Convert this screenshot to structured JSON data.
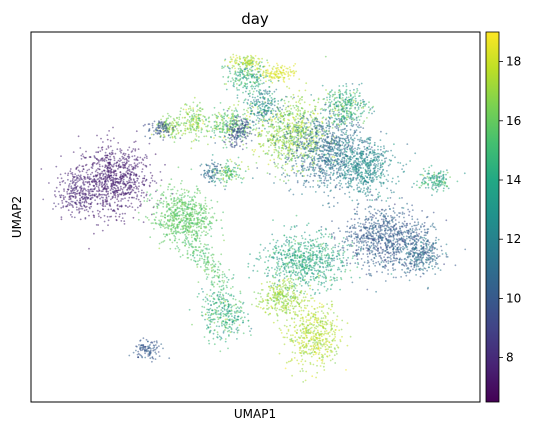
{
  "chart_data": {
    "type": "scatter",
    "title": "day",
    "xlabel": "UMAP1",
    "ylabel": "UMAP2",
    "colorbar": {
      "label": "",
      "colormap": "viridis",
      "range": [
        6.5,
        19.0
      ],
      "ticks": [
        8,
        10,
        12,
        14,
        16,
        18
      ]
    },
    "axis_ticks": false,
    "grid": false,
    "legend": "none",
    "clusters": [
      {
        "x": 0.18,
        "y": 0.6,
        "rx": 0.085,
        "ry": 0.095,
        "rot": -8,
        "value": 7.6,
        "spread": 0.4,
        "n": 900
      },
      {
        "x": 0.1,
        "y": 0.56,
        "rx": 0.04,
        "ry": 0.05,
        "rot": 0,
        "value": 7.8,
        "spread": 0.4,
        "n": 200
      },
      {
        "x": 0.34,
        "y": 0.5,
        "rx": 0.065,
        "ry": 0.075,
        "rot": 10,
        "value": 15.8,
        "spread": 0.6,
        "n": 650
      },
      {
        "x": 0.39,
        "y": 0.38,
        "rx": 0.03,
        "ry": 0.09,
        "rot": 30,
        "value": 15.5,
        "spread": 0.8,
        "n": 180
      },
      {
        "x": 0.26,
        "y": 0.14,
        "rx": 0.03,
        "ry": 0.025,
        "rot": 0,
        "value": 10.0,
        "spread": 0.6,
        "n": 110
      },
      {
        "x": 0.58,
        "y": 0.73,
        "rx": 0.08,
        "ry": 0.095,
        "rot": 0,
        "value": 16.8,
        "spread": 1.2,
        "n": 700
      },
      {
        "x": 0.66,
        "y": 0.68,
        "rx": 0.1,
        "ry": 0.1,
        "rot": 0,
        "value": 11.0,
        "spread": 1.2,
        "n": 900
      },
      {
        "x": 0.74,
        "y": 0.63,
        "rx": 0.07,
        "ry": 0.07,
        "rot": 0,
        "value": 12.5,
        "spread": 1.0,
        "n": 500
      },
      {
        "x": 0.79,
        "y": 0.44,
        "rx": 0.1,
        "ry": 0.085,
        "rot": -10,
        "value": 10.2,
        "spread": 1.0,
        "n": 900
      },
      {
        "x": 0.87,
        "y": 0.4,
        "rx": 0.045,
        "ry": 0.06,
        "rot": 0,
        "value": 11.0,
        "spread": 1.2,
        "n": 250
      },
      {
        "x": 0.61,
        "y": 0.38,
        "rx": 0.09,
        "ry": 0.075,
        "rot": 0,
        "value": 14.0,
        "spread": 1.5,
        "n": 700
      },
      {
        "x": 0.56,
        "y": 0.28,
        "rx": 0.05,
        "ry": 0.05,
        "rot": 0,
        "value": 17.0,
        "spread": 1.0,
        "n": 300
      },
      {
        "x": 0.63,
        "y": 0.18,
        "rx": 0.06,
        "ry": 0.09,
        "rot": 0,
        "value": 17.5,
        "spread": 1.0,
        "n": 500
      },
      {
        "x": 0.43,
        "y": 0.24,
        "rx": 0.05,
        "ry": 0.07,
        "rot": 0,
        "value": 14.5,
        "spread": 2.0,
        "n": 320
      },
      {
        "x": 0.31,
        "y": 0.74,
        "rx": 0.03,
        "ry": 0.03,
        "rot": 0,
        "value": 16.5,
        "spread": 1.5,
        "n": 120
      },
      {
        "x": 0.44,
        "y": 0.75,
        "rx": 0.055,
        "ry": 0.045,
        "rot": 0,
        "value": 15.8,
        "spread": 2.0,
        "n": 260
      },
      {
        "x": 0.48,
        "y": 0.88,
        "rx": 0.045,
        "ry": 0.04,
        "rot": 0,
        "value": 14.5,
        "spread": 2.0,
        "n": 200
      },
      {
        "x": 0.55,
        "y": 0.89,
        "rx": 0.04,
        "ry": 0.02,
        "rot": 0,
        "value": 18.3,
        "spread": 0.6,
        "n": 120
      },
      {
        "x": 0.48,
        "y": 0.92,
        "rx": 0.04,
        "ry": 0.02,
        "rot": 0,
        "value": 17.5,
        "spread": 1.0,
        "n": 110
      },
      {
        "x": 0.46,
        "y": 0.73,
        "rx": 0.03,
        "ry": 0.04,
        "rot": 0,
        "value": 9.6,
        "spread": 0.8,
        "n": 160
      },
      {
        "x": 0.29,
        "y": 0.74,
        "rx": 0.03,
        "ry": 0.025,
        "rot": 0,
        "value": 9.8,
        "spread": 0.8,
        "n": 90
      },
      {
        "x": 0.52,
        "y": 0.8,
        "rx": 0.04,
        "ry": 0.05,
        "rot": 0,
        "value": 12.5,
        "spread": 2.0,
        "n": 200
      },
      {
        "x": 0.36,
        "y": 0.76,
        "rx": 0.03,
        "ry": 0.05,
        "rot": 0,
        "value": 16.5,
        "spread": 1.5,
        "n": 150
      },
      {
        "x": 0.7,
        "y": 0.8,
        "rx": 0.05,
        "ry": 0.05,
        "rot": 0,
        "value": 14.5,
        "spread": 2.5,
        "n": 300
      },
      {
        "x": 0.9,
        "y": 0.6,
        "rx": 0.04,
        "ry": 0.03,
        "rot": 0,
        "value": 14.0,
        "spread": 2.0,
        "n": 150
      },
      {
        "x": 0.44,
        "y": 0.62,
        "rx": 0.03,
        "ry": 0.03,
        "rot": 0,
        "value": 15.5,
        "spread": 2.0,
        "n": 120
      },
      {
        "x": 0.4,
        "y": 0.62,
        "rx": 0.025,
        "ry": 0.03,
        "rot": 0,
        "value": 11.0,
        "spread": 1.5,
        "n": 80
      }
    ]
  }
}
